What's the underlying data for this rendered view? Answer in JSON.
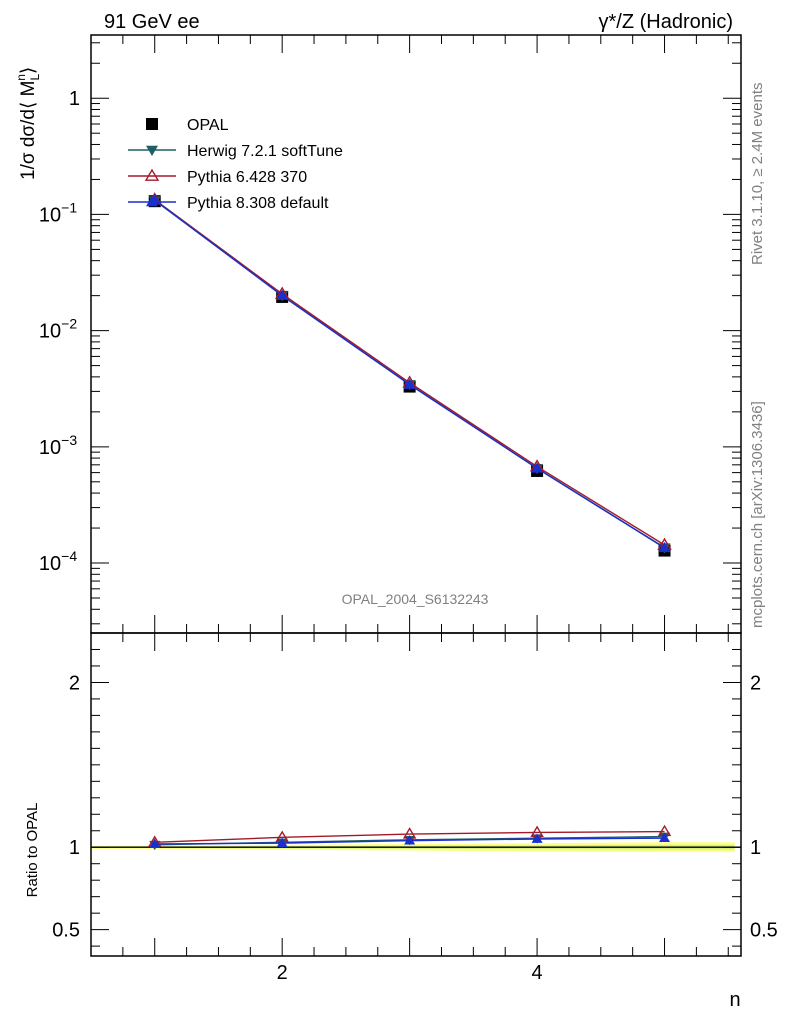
{
  "header": {
    "left": "91 GeV ee",
    "right": "γ*/Z (Hadronic)"
  },
  "side_labels": {
    "rivet": "Rivet 3.1.10, ≥ 2.4M events",
    "mcplots": "mcplots.cern.ch [arXiv:1306.3436]"
  },
  "watermark": "OPAL_2004_S6132243",
  "chart_data": [
    {
      "type": "line",
      "panel": "main",
      "y_scale": "log",
      "ylabel": "1/σ dσ/d⟨ M_L^n⟩",
      "xlabel": "n",
      "xlim": [
        0.5,
        5.6
      ],
      "ylim": [
        2.5e-05,
        3.5
      ],
      "y_tick_labels": [
        "10^-4",
        "10^-3",
        "10^-2",
        "10^-1",
        "1"
      ],
      "x_tick_labels": [
        "2",
        "4"
      ],
      "x": [
        1,
        2,
        3,
        4,
        5
      ],
      "series": [
        {
          "name": "OPAL",
          "marker": "square",
          "color": "#000000",
          "values": [
            0.13,
            0.0195,
            0.0033,
            0.00062,
            0.000128
          ]
        },
        {
          "name": "Herwig 7.2.1 softTune",
          "marker": "triangle-down",
          "color": "#1f5f66",
          "values": [
            0.132,
            0.0201,
            0.00345,
            0.000655,
            0.000136
          ]
        },
        {
          "name": "Pythia 6.428 370",
          "marker": "triangle-up-open",
          "color": "#a31a2a",
          "values": [
            0.134,
            0.0207,
            0.00356,
            0.000676,
            0.000143
          ]
        },
        {
          "name": "Pythia 8.308 default",
          "marker": "triangle-up",
          "color": "#1a2fd0",
          "values": [
            0.133,
            0.02,
            0.00343,
            0.000652,
            0.000135
          ]
        }
      ],
      "legend_position": "top-left"
    },
    {
      "type": "line",
      "panel": "ratio",
      "ylabel": "Ratio to OPAL",
      "xlabel": "n",
      "xlim": [
        0.5,
        5.6
      ],
      "ylim": [
        0.34,
        2.3
      ],
      "y_tick_labels": [
        "0.5",
        "1",
        "2"
      ],
      "x_tick_labels": [
        "2",
        "4"
      ],
      "x": [
        1,
        2,
        3,
        4,
        5
      ],
      "series": [
        {
          "name": "Herwig 7.2.1 softTune",
          "color": "#1f5f66",
          "values": [
            1.015,
            1.03,
            1.045,
            1.055,
            1.065
          ]
        },
        {
          "name": "Pythia 6.428 370",
          "color": "#a31a2a",
          "values": [
            1.03,
            1.06,
            1.08,
            1.09,
            1.095
          ]
        },
        {
          "name": "Pythia 8.308 default",
          "color": "#1a2fd0",
          "values": [
            1.02,
            1.025,
            1.04,
            1.05,
            1.055
          ]
        }
      ],
      "bands": [
        {
          "color": "#ffff66",
          "x": [
            1,
            2,
            3,
            4,
            5
          ],
          "lo": [
            0.99,
            0.985,
            0.98,
            0.975,
            0.97
          ],
          "hi": [
            1.01,
            1.015,
            1.02,
            1.025,
            1.03
          ]
        },
        {
          "color": "#c8f07a",
          "x": [
            1,
            2,
            3,
            4,
            5
          ],
          "lo": [
            0.995,
            0.993,
            0.99,
            0.988,
            0.985
          ],
          "hi": [
            1.005,
            1.007,
            1.01,
            1.012,
            1.015
          ]
        }
      ]
    }
  ]
}
